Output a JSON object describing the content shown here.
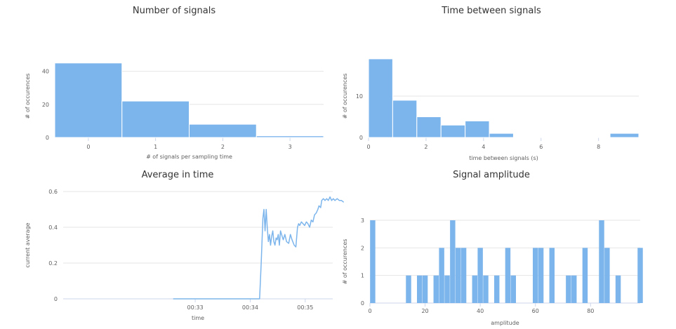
{
  "colors": {
    "bar": "#7cb5ec",
    "line": "#7cb5ec",
    "grid": "#e6e6e6",
    "axis": "#ccd6eb",
    "text": "#606060",
    "title": "#333333"
  },
  "chart_data": [
    {
      "id": "signals",
      "type": "bar",
      "title": "Number of signals",
      "xlabel": "# of signals per sampling time",
      "ylabel": "# of occurences",
      "xlim": [
        -0.5,
        3.5
      ],
      "ylim": [
        0,
        50
      ],
      "xticks": [
        0,
        1,
        2,
        3
      ],
      "yticks": [
        0,
        20,
        40
      ],
      "bins": [
        {
          "x0": -0.5,
          "x1": 0.5,
          "value": 45
        },
        {
          "x0": 0.5,
          "x1": 1.5,
          "value": 22
        },
        {
          "x0": 1.5,
          "x1": 2.5,
          "value": 8
        },
        {
          "x0": 2.5,
          "x1": 3.5,
          "value": 1
        }
      ]
    },
    {
      "id": "between",
      "type": "bar",
      "title": "Time between signals",
      "xlabel": "time between signals (s)",
      "ylabel": "# of occurences",
      "xlim": [
        0,
        9.4
      ],
      "ylim": [
        0,
        20
      ],
      "xticks": [
        0,
        2,
        4,
        6,
        8
      ],
      "yticks": [
        0,
        10
      ],
      "bins": [
        {
          "x0": 0.0,
          "x1": 0.84,
          "value": 19
        },
        {
          "x0": 0.84,
          "x1": 1.68,
          "value": 9
        },
        {
          "x0": 1.68,
          "x1": 2.52,
          "value": 5
        },
        {
          "x0": 2.52,
          "x1": 3.36,
          "value": 3
        },
        {
          "x0": 3.36,
          "x1": 4.2,
          "value": 4
        },
        {
          "x0": 4.2,
          "x1": 5.04,
          "value": 1
        },
        {
          "x0": 5.04,
          "x1": 5.88,
          "value": 0.15
        },
        {
          "x0": 5.88,
          "x1": 6.72,
          "value": 0.15
        },
        {
          "x0": 6.72,
          "x1": 7.56,
          "value": 0.15
        },
        {
          "x0": 7.56,
          "x1": 8.4,
          "value": 0.15
        },
        {
          "x0": 8.4,
          "x1": 9.4,
          "value": 1
        }
      ]
    },
    {
      "id": "average",
      "type": "line",
      "title": "Average in time",
      "xlabel": "time",
      "ylabel": "current average",
      "xlim": [
        30.6,
        35.5
      ],
      "ylim": [
        0,
        0.6
      ],
      "xticks": [
        {
          "v": 33,
          "label": "00:33"
        },
        {
          "v": 34,
          "label": "00:34"
        },
        {
          "v": 35,
          "label": "00:35"
        }
      ],
      "yticks": [
        {
          "v": 0,
          "label": "0"
        },
        {
          "v": 0.2,
          "label": "0.2"
        },
        {
          "v": 0.4,
          "label": "0.4"
        },
        {
          "v": 0.6,
          "label": "0.6"
        }
      ],
      "points": [
        [
          32.6,
          0
        ],
        [
          34.17,
          0
        ],
        [
          34.2,
          0.2
        ],
        [
          34.23,
          0.45
        ],
        [
          34.25,
          0.5
        ],
        [
          34.27,
          0.38
        ],
        [
          34.29,
          0.5
        ],
        [
          34.31,
          0.4
        ],
        [
          34.33,
          0.32
        ],
        [
          34.35,
          0.36
        ],
        [
          34.37,
          0.3
        ],
        [
          34.39,
          0.35
        ],
        [
          34.41,
          0.38
        ],
        [
          34.43,
          0.32
        ],
        [
          34.45,
          0.3
        ],
        [
          34.47,
          0.34
        ],
        [
          34.49,
          0.33
        ],
        [
          34.51,
          0.36
        ],
        [
          34.53,
          0.3
        ],
        [
          34.55,
          0.38
        ],
        [
          34.57,
          0.36
        ],
        [
          34.6,
          0.33
        ],
        [
          34.63,
          0.36
        ],
        [
          34.66,
          0.32
        ],
        [
          34.7,
          0.31
        ],
        [
          34.73,
          0.36
        ],
        [
          34.76,
          0.33
        ],
        [
          34.8,
          0.3
        ],
        [
          34.83,
          0.29
        ],
        [
          34.86,
          0.4
        ],
        [
          34.88,
          0.42
        ],
        [
          34.9,
          0.41
        ],
        [
          34.93,
          0.43
        ],
        [
          34.96,
          0.42
        ],
        [
          34.99,
          0.41
        ],
        [
          35.02,
          0.43
        ],
        [
          35.05,
          0.42
        ],
        [
          35.08,
          0.4
        ],
        [
          35.11,
          0.44
        ],
        [
          35.14,
          0.43
        ],
        [
          35.17,
          0.47
        ],
        [
          35.2,
          0.48
        ],
        [
          35.23,
          0.5
        ],
        [
          35.25,
          0.52
        ],
        [
          35.28,
          0.51
        ],
        [
          35.3,
          0.55
        ],
        [
          35.33,
          0.56
        ],
        [
          35.36,
          0.55
        ],
        [
          35.39,
          0.56
        ],
        [
          35.42,
          0.55
        ],
        [
          35.45,
          0.57
        ],
        [
          35.48,
          0.55
        ],
        [
          35.51,
          0.56
        ],
        [
          35.54,
          0.55
        ],
        [
          35.58,
          0.56
        ],
        [
          35.62,
          0.55
        ],
        [
          35.66,
          0.55
        ],
        [
          35.7,
          0.54
        ]
      ]
    },
    {
      "id": "amplitude",
      "type": "bar",
      "title": "Signal amplitude",
      "xlabel": "amplitude",
      "ylabel": "# of occurences",
      "xlim": [
        0,
        98
      ],
      "ylim": [
        0,
        3
      ],
      "xticks": [
        0,
        20,
        40,
        60,
        80
      ],
      "yticks": [
        0,
        1,
        2,
        3
      ],
      "barwidth": 1.9,
      "bars": [
        [
          1,
          3
        ],
        [
          14,
          1
        ],
        [
          18,
          1
        ],
        [
          20,
          1
        ],
        [
          24,
          1
        ],
        [
          26,
          2
        ],
        [
          28,
          1
        ],
        [
          30,
          3
        ],
        [
          32,
          2
        ],
        [
          34,
          2
        ],
        [
          38,
          1
        ],
        [
          40,
          2
        ],
        [
          42,
          1
        ],
        [
          46,
          1
        ],
        [
          50,
          2
        ],
        [
          52,
          1
        ],
        [
          60,
          2
        ],
        [
          62,
          2
        ],
        [
          66,
          2
        ],
        [
          72,
          1
        ],
        [
          74,
          1
        ],
        [
          78,
          2
        ],
        [
          84,
          3
        ],
        [
          86,
          2
        ],
        [
          90,
          1
        ],
        [
          98,
          2
        ]
      ]
    }
  ]
}
